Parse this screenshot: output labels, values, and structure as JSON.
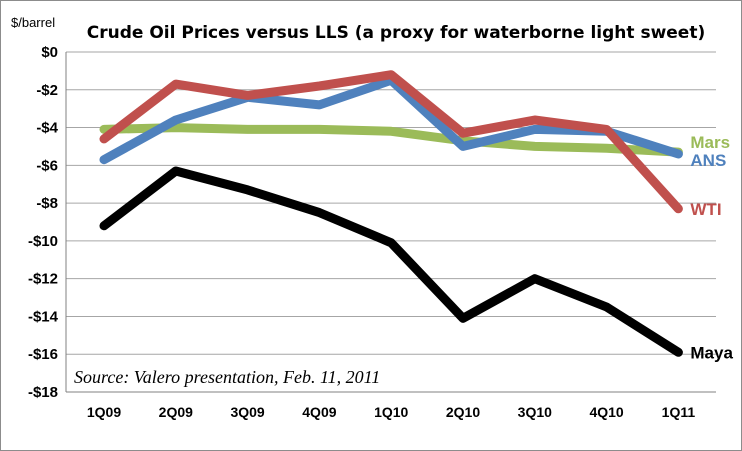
{
  "chart_data": {
    "type": "line",
    "title": "Crude Oil Prices versus LLS (a proxy for waterborne light sweet)",
    "y_unit_label": "$/barrel",
    "source_note": "Source: Valero presentation, Feb. 11, 2011",
    "categories": [
      "1Q09",
      "2Q09",
      "3Q09",
      "4Q09",
      "1Q10",
      "2Q10",
      "3Q10",
      "4Q10",
      "1Q11"
    ],
    "ylim": [
      -18,
      0
    ],
    "yticks": [
      0,
      -2,
      -4,
      -6,
      -8,
      -10,
      -12,
      -14,
      -16,
      -18
    ],
    "ytick_labels": [
      "$0",
      "-$2",
      "-$4",
      "-$6",
      "-$8",
      "-$10",
      "-$12",
      "-$14",
      "-$16",
      "-$18"
    ],
    "grid": true,
    "series": [
      {
        "name": "Mars",
        "color": "#9bbb59",
        "values": [
          -4.1,
          -4.0,
          -4.1,
          -4.1,
          -4.2,
          -4.7,
          -5.0,
          -5.1,
          -5.3
        ]
      },
      {
        "name": "ANS",
        "color": "#4f81bd",
        "values": [
          -5.7,
          -3.6,
          -2.4,
          -2.8,
          -1.5,
          -5.0,
          -4.1,
          -4.2,
          -5.4
        ]
      },
      {
        "name": "WTI",
        "color": "#c0504d",
        "values": [
          -4.6,
          -1.7,
          -2.3,
          -1.8,
          -1.2,
          -4.3,
          -3.6,
          -4.1,
          -8.3
        ]
      },
      {
        "name": "Maya",
        "color": "#000000",
        "values": [
          -9.2,
          -6.3,
          -7.3,
          -8.5,
          -10.1,
          -14.1,
          -12.0,
          -13.5,
          -15.9
        ]
      }
    ]
  }
}
